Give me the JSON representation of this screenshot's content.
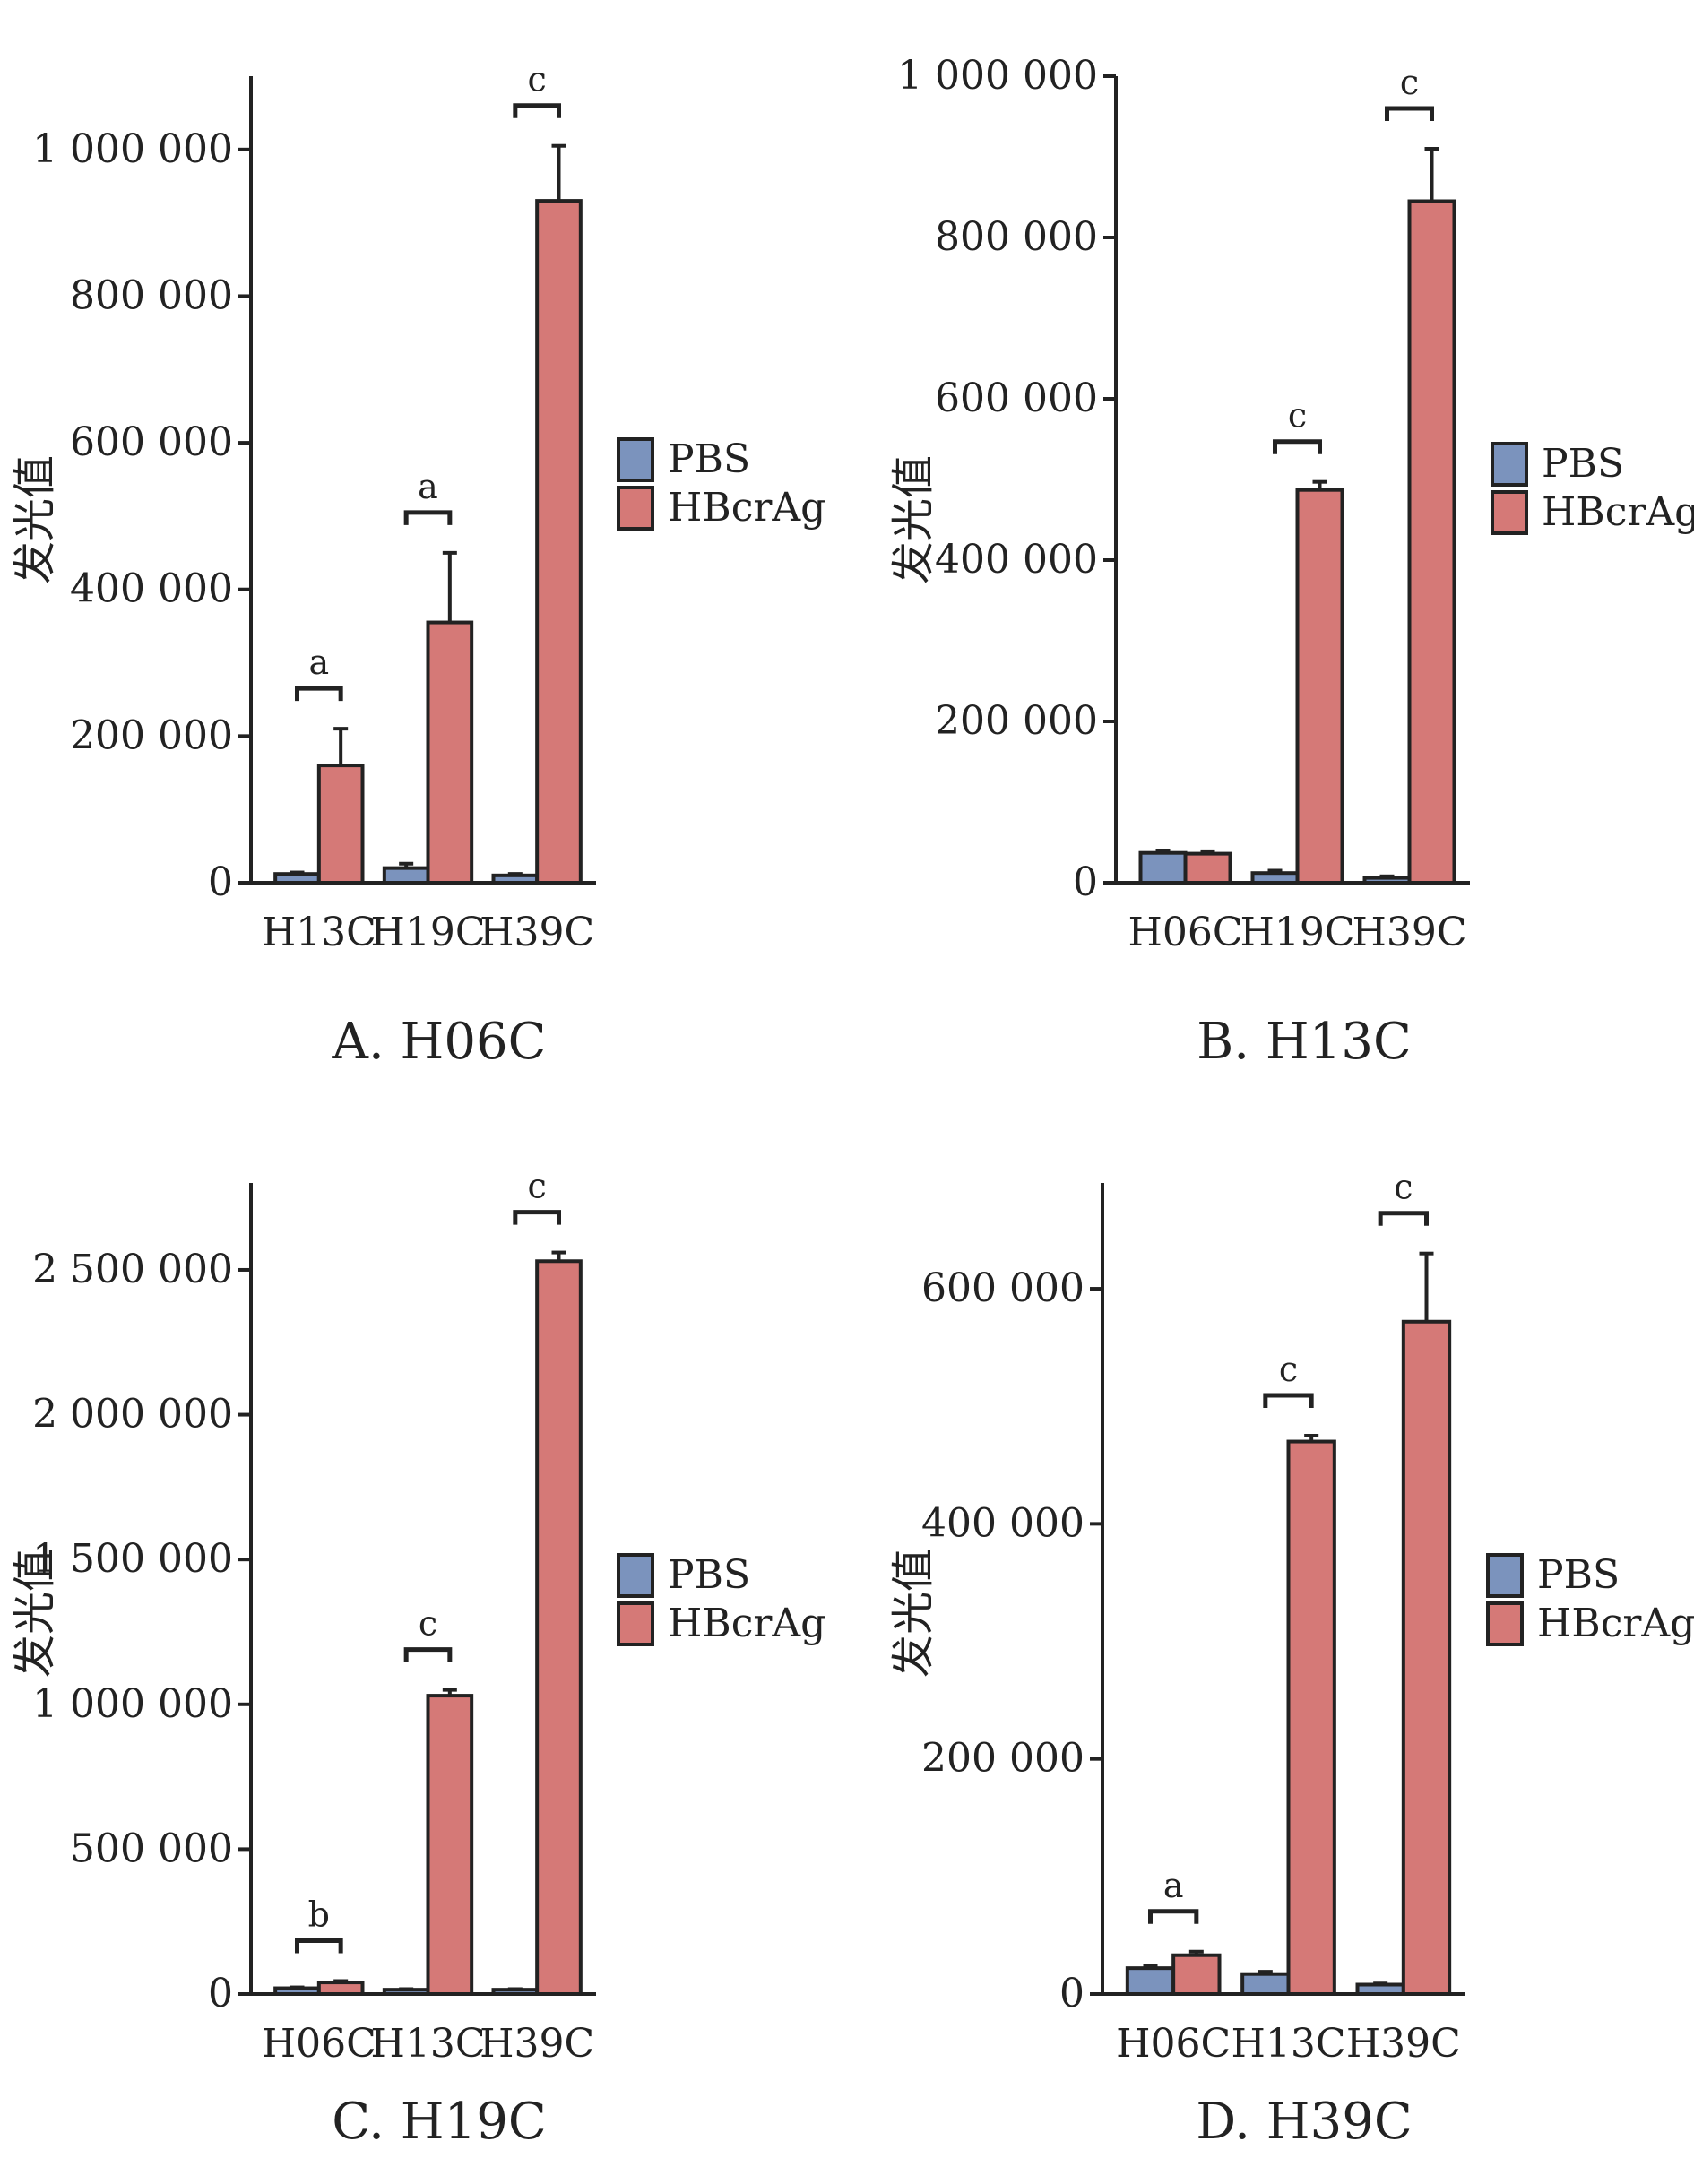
{
  "colors": {
    "pbs": "#7b93bd",
    "hbcrag": "#d57977",
    "axis": "#222222"
  },
  "y_axis_label": "发光值",
  "legend": [
    "PBS",
    "HBcrAg"
  ],
  "chart_data": [
    {
      "type": "bar",
      "title": "A. H06C",
      "ylabel": "发光值",
      "categories": [
        "H13C",
        "H19C",
        "H39C"
      ],
      "ylim": [
        0,
        1100000
      ],
      "yticks": [
        0,
        200000,
        400000,
        600000,
        800000,
        1000000
      ],
      "ytick_labels": [
        "0",
        "200 000",
        "400 000",
        "600 000",
        "800 000",
        "1 000 000"
      ],
      "series": [
        {
          "name": "PBS",
          "values": [
            12000,
            20000,
            10000
          ],
          "errors": [
            2000,
            6000,
            2000
          ]
        },
        {
          "name": "HBcrAg",
          "values": [
            160000,
            355000,
            930000
          ],
          "errors": [
            50000,
            95000,
            75000
          ]
        }
      ],
      "significance": [
        "a",
        "a",
        "c"
      ]
    },
    {
      "type": "bar",
      "title": "B. H13C",
      "ylabel": "发光值",
      "categories": [
        "H06C",
        "H19C",
        "H39C"
      ],
      "ylim": [
        0,
        1000000
      ],
      "yticks": [
        0,
        200000,
        400000,
        600000,
        800000,
        1000000
      ],
      "ytick_labels": [
        "0",
        "200 000",
        "400 000",
        "600 000",
        "800 000",
        "1 000 000"
      ],
      "series": [
        {
          "name": "PBS",
          "values": [
            37000,
            12000,
            6000
          ],
          "errors": [
            3000,
            3000,
            2000
          ]
        },
        {
          "name": "HBcrAg",
          "values": [
            36000,
            487000,
            845000
          ],
          "errors": [
            3000,
            10000,
            65000
          ]
        }
      ],
      "significance": [
        "",
        "c",
        "c"
      ]
    },
    {
      "type": "bar",
      "title": "C. H19C",
      "ylabel": "发光值",
      "categories": [
        "H06C",
        "H13C",
        "H39C"
      ],
      "ylim": [
        0,
        2800000
      ],
      "yticks": [
        0,
        500000,
        1000000,
        1500000,
        2000000,
        2500000
      ],
      "ytick_labels": [
        "0",
        "500 000",
        "1 000 000",
        "1 500 000",
        "2 000 000",
        "2 500 000"
      ],
      "series": [
        {
          "name": "PBS",
          "values": [
            20000,
            15000,
            15000
          ],
          "errors": [
            3000,
            2000,
            2000
          ]
        },
        {
          "name": "HBcrAg",
          "values": [
            40000,
            1030000,
            2530000
          ],
          "errors": [
            5000,
            20000,
            30000
          ]
        }
      ],
      "significance": [
        "b",
        "c",
        "c"
      ]
    },
    {
      "type": "bar",
      "title": "D. H39C",
      "ylabel": "发光值",
      "categories": [
        "H06C",
        "H13C",
        "H39C"
      ],
      "ylim": [
        0,
        690000
      ],
      "yticks": [
        0,
        200000,
        400000,
        600000
      ],
      "ytick_labels": [
        "0",
        "200 000",
        "400 000",
        "600 000"
      ],
      "series": [
        {
          "name": "PBS",
          "values": [
            22000,
            17000,
            8000
          ],
          "errors": [
            2000,
            2000,
            1000
          ]
        },
        {
          "name": "HBcrAg",
          "values": [
            33000,
            470000,
            572000
          ],
          "errors": [
            3000,
            5000,
            58000
          ]
        }
      ],
      "significance": [
        "a",
        "c",
        "c"
      ]
    }
  ]
}
